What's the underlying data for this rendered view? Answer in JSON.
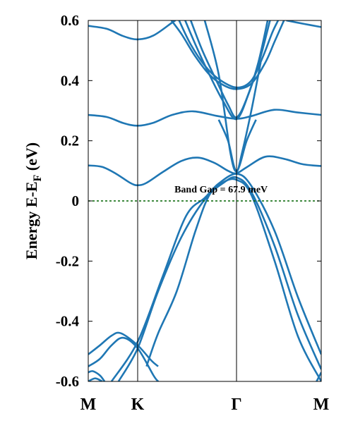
{
  "chart_data": {
    "type": "line",
    "title": "",
    "ylabel": "Energy E-E",
    "ylabel_sub": "F",
    "ylabel_unit": " (eV)",
    "ylim": [
      -0.6,
      0.6
    ],
    "yticks": [
      -0.6,
      -0.4,
      -0.2,
      0,
      0.2,
      0.4,
      0.6
    ],
    "ytick_labels": [
      "-0.6",
      "-0.4",
      "-0.2",
      "0",
      "0.2",
      "0.4",
      "0.6"
    ],
    "xlim": [
      0,
      1
    ],
    "x_ticks": [
      {
        "label": "M",
        "x": 0
      },
      {
        "label": "K",
        "x": 0.2121
      },
      {
        "label": "Γ",
        "x": 0.6364
      },
      {
        "label": "M",
        "x": 1
      }
    ],
    "grid": false,
    "fermi_level": {
      "y": 0,
      "color": "#006400",
      "style": "dashed"
    },
    "annotation": {
      "text": "Band Gap = 67.9 meV",
      "x": 0.37,
      "y": 0.028
    },
    "line_color": "#1f77b4",
    "series": [
      {
        "values": [
          [
            0,
            0.582
          ],
          [
            0.08,
            0.572
          ],
          [
            0.15,
            0.548
          ],
          [
            0.2121,
            0.537
          ],
          [
            0.28,
            0.55
          ],
          [
            0.36,
            0.593
          ],
          [
            0.374,
            0.6
          ]
        ]
      },
      {
        "values": [
          [
            0.85,
            0.6
          ],
          [
            0.93,
            0.588
          ],
          [
            1,
            0.578
          ]
        ]
      },
      {
        "values": [
          [
            0,
            0.286
          ],
          [
            0.08,
            0.279
          ],
          [
            0.15,
            0.259
          ],
          [
            0.2121,
            0.25
          ],
          [
            0.28,
            0.26
          ],
          [
            0.36,
            0.286
          ],
          [
            0.45,
            0.298
          ],
          [
            0.55,
            0.283
          ],
          [
            0.6364,
            0.273
          ],
          [
            0.7,
            0.282
          ],
          [
            0.8,
            0.303
          ],
          [
            0.9,
            0.294
          ],
          [
            1,
            0.286
          ]
        ]
      },
      {
        "values": [
          [
            0,
            0.118
          ],
          [
            0.06,
            0.113
          ],
          [
            0.12,
            0.09
          ],
          [
            0.18,
            0.06
          ],
          [
            0.2121,
            0.052
          ],
          [
            0.25,
            0.06
          ],
          [
            0.32,
            0.096
          ],
          [
            0.4,
            0.133
          ],
          [
            0.47,
            0.144
          ],
          [
            0.54,
            0.127
          ],
          [
            0.6,
            0.1
          ],
          [
            0.6364,
            0.092
          ],
          [
            0.68,
            0.112
          ],
          [
            0.76,
            0.147
          ],
          [
            0.84,
            0.14
          ],
          [
            0.92,
            0.122
          ],
          [
            1,
            0.116
          ]
        ]
      },
      {
        "values": [
          [
            0.357,
            0.6
          ],
          [
            0.4,
            0.555
          ],
          [
            0.46,
            0.48
          ],
          [
            0.52,
            0.42
          ],
          [
            0.58,
            0.385
          ],
          [
            0.6364,
            0.372
          ],
          [
            0.7,
            0.39
          ],
          [
            0.76,
            0.46
          ],
          [
            0.8,
            0.53
          ],
          [
            0.84,
            0.6
          ]
        ]
      },
      {
        "values": [
          [
            0.39,
            0.6
          ],
          [
            0.44,
            0.52
          ],
          [
            0.5,
            0.45
          ],
          [
            0.56,
            0.405
          ],
          [
            0.6364,
            0.377
          ],
          [
            0.7,
            0.4
          ],
          [
            0.75,
            0.48
          ],
          [
            0.79,
            0.56
          ],
          [
            0.815,
            0.6
          ]
        ]
      },
      {
        "values": [
          [
            0.416,
            0.6
          ],
          [
            0.46,
            0.52
          ],
          [
            0.52,
            0.42
          ],
          [
            0.58,
            0.33
          ],
          [
            0.6364,
            0.272
          ],
          [
            0.69,
            0.36
          ],
          [
            0.74,
            0.48
          ],
          [
            0.78,
            0.6
          ]
        ]
      },
      {
        "values": [
          [
            0.44,
            0.6
          ],
          [
            0.49,
            0.5
          ],
          [
            0.55,
            0.4
          ],
          [
            0.6,
            0.32
          ],
          [
            0.6364,
            0.278
          ],
          [
            0.68,
            0.34
          ],
          [
            0.73,
            0.46
          ],
          [
            0.77,
            0.6
          ]
        ]
      },
      {
        "values": [
          [
            0.56,
            0.27
          ],
          [
            0.6,
            0.2
          ],
          [
            0.6364,
            0.1
          ],
          [
            0.68,
            0.2
          ],
          [
            0.72,
            0.27
          ]
        ]
      },
      {
        "values": [
          [
            0.5,
            0.6
          ],
          [
            0.56,
            0.42
          ],
          [
            0.61,
            0.16
          ],
          [
            0.6364,
            0.098
          ],
          [
            0.66,
            0.16
          ],
          [
            0.7,
            0.3
          ],
          [
            0.74,
            0.46
          ]
        ]
      },
      {
        "values": [
          [
            0.1,
            -0.6
          ],
          [
            0.2121,
            -0.468
          ],
          [
            0.32,
            -0.25
          ],
          [
            0.42,
            -0.05
          ],
          [
            0.5,
            0.01
          ],
          [
            0.56,
            0.058
          ],
          [
            0.6364,
            0.09
          ],
          [
            0.7,
            0.05
          ],
          [
            0.8,
            -0.1
          ],
          [
            0.9,
            -0.32
          ],
          [
            1,
            -0.51
          ]
        ]
      },
      {
        "values": [
          [
            0.13,
            -0.6
          ],
          [
            0.2121,
            -0.49
          ],
          [
            0.3,
            -0.3
          ],
          [
            0.4,
            -0.12
          ],
          [
            0.5,
            0.005
          ],
          [
            0.58,
            0.06
          ],
          [
            0.6364,
            0.078
          ],
          [
            0.7,
            0.03
          ],
          [
            0.8,
            -0.15
          ],
          [
            0.9,
            -0.38
          ],
          [
            1,
            -0.56
          ]
        ]
      },
      {
        "values": [
          [
            0.25,
            -0.55
          ],
          [
            0.3,
            -0.44
          ],
          [
            0.38,
            -0.3
          ],
          [
            0.46,
            -0.1
          ],
          [
            0.52,
            0.02
          ],
          [
            0.58,
            0.062
          ],
          [
            0.6364,
            0.07
          ],
          [
            0.7,
            0.02
          ],
          [
            0.8,
            -0.2
          ],
          [
            0.9,
            -0.45
          ],
          [
            1,
            -0.6
          ]
        ]
      },
      {
        "values": [
          [
            0,
            -0.51
          ],
          [
            0.05,
            -0.48
          ],
          [
            0.1,
            -0.448
          ],
          [
            0.14,
            -0.44
          ],
          [
            0.2121,
            -0.48
          ],
          [
            0.27,
            -0.53
          ],
          [
            0.3,
            -0.55
          ]
        ]
      },
      {
        "values": [
          [
            0,
            -0.55
          ],
          [
            0.05,
            -0.525
          ],
          [
            0.1,
            -0.48
          ],
          [
            0.15,
            -0.455
          ],
          [
            0.2121,
            -0.49
          ],
          [
            0.28,
            -0.58
          ],
          [
            0.3,
            -0.6
          ]
        ]
      },
      {
        "values": [
          [
            0,
            -0.57
          ],
          [
            0.02,
            -0.566
          ],
          [
            0.05,
            -0.58
          ],
          [
            0.07,
            -0.6
          ]
        ]
      },
      {
        "values": [
          [
            0,
            -0.6
          ],
          [
            0.03,
            -0.59
          ],
          [
            0.06,
            -0.6
          ]
        ]
      },
      {
        "values": [
          [
            0.98,
            -0.6
          ],
          [
            1,
            -0.57
          ]
        ]
      }
    ]
  }
}
